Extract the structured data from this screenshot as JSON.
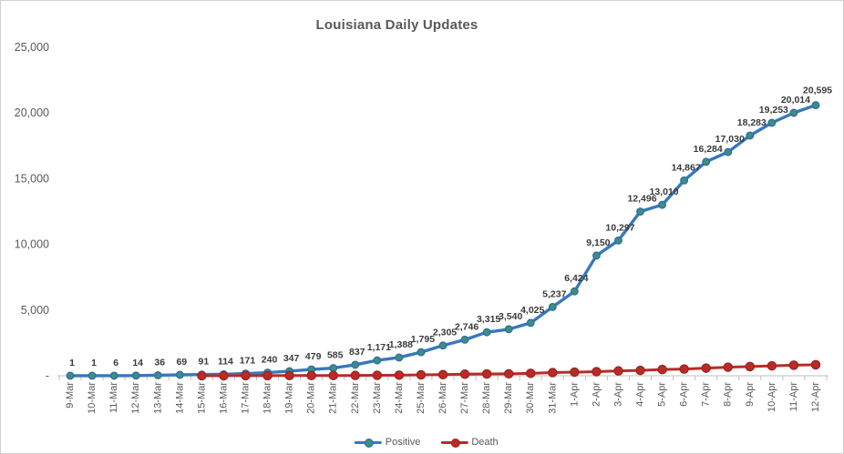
{
  "window": {
    "title": "Louisiana Daily Updates"
  },
  "chart_data": {
    "type": "line",
    "title": "Louisiana Daily Updates",
    "categories": [
      "9-Mar",
      "10-Mar",
      "11-Mar",
      "12-Mar",
      "13-Mar",
      "14-Mar",
      "15-Mar",
      "16-Mar",
      "17-Mar",
      "18-Mar",
      "19-Mar",
      "20-Mar",
      "21-Mar",
      "22-Mar",
      "23-Mar",
      "24-Mar",
      "25-Mar",
      "26-Mar",
      "27-Mar",
      "28-Mar",
      "29-Mar",
      "30-Mar",
      "31-Mar",
      "1-Apr",
      "2-Apr",
      "3-Apr",
      "4-Apr",
      "5-Apr",
      "6-Apr",
      "7-Apr",
      "8-Apr",
      "9-Apr",
      "10-Apr",
      "11-Apr",
      "12-Apr"
    ],
    "series": [
      {
        "name": "Positive",
        "line_color": "#3778bf",
        "marker_fill": "#3e8e7e",
        "marker_stroke": "#2e6da8",
        "show_labels": true,
        "values": [
          1,
          1,
          6,
          14,
          36,
          69,
          91,
          114,
          171,
          240,
          347,
          479,
          585,
          837,
          1171,
          1388,
          1795,
          2305,
          2746,
          3315,
          3540,
          4025,
          5237,
          6424,
          9150,
          10297,
          12496,
          13010,
          14867,
          16284,
          17030,
          18283,
          19253,
          20014,
          20595
        ]
      },
      {
        "name": "Death",
        "line_color": "#b92b27",
        "marker_fill": "#b92b27",
        "marker_stroke": "#9e241f",
        "show_labels": false,
        "values": [
          null,
          null,
          null,
          null,
          null,
          null,
          2,
          4,
          7,
          8,
          13,
          16,
          20,
          22,
          34,
          46,
          65,
          83,
          119,
          137,
          151,
          185,
          239,
          273,
          310,
          370,
          409,
          477,
          512,
          582,
          652,
          702,
          755,
          806,
          840
        ]
      }
    ],
    "ylim": [
      0,
      25000
    ],
    "yticks": [
      {
        "value": 0,
        "label": "-"
      },
      {
        "value": 5000,
        "label": "5,000"
      },
      {
        "value": 10000,
        "label": "10,000"
      },
      {
        "value": 15000,
        "label": "15,000"
      },
      {
        "value": 20000,
        "label": "20,000"
      },
      {
        "value": 25000,
        "label": "25,000"
      }
    ],
    "grid": false,
    "legend_position": "bottom",
    "colors": {
      "axis": "#bfbfbf",
      "tick_text": "#595959",
      "title_text": "#595959",
      "data_label": "#3a3a3a",
      "background": "#ffffff"
    }
  }
}
